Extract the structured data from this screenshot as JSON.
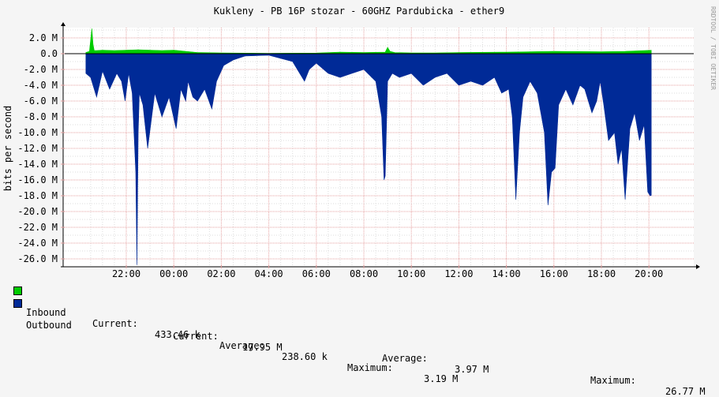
{
  "chart_data": {
    "type": "area",
    "title": "Kukleny - PB 16P stozar - 60GHZ Pardubicka - ether9",
    "ylabel": "bits per second",
    "watermark": "RRDTOOL / TOBI OETIKER",
    "x_ticks": [
      "22:00",
      "00:00",
      "02:00",
      "04:00",
      "06:00",
      "08:00",
      "10:00",
      "12:00",
      "14:00",
      "16:00",
      "18:00",
      "20:00"
    ],
    "y_ticks": [
      "2.0 M",
      "0.0",
      "-2.0 M",
      "-4.0 M",
      "-6.0 M",
      "-8.0 M",
      "-10.0 M",
      "-12.0 M",
      "-14.0 M",
      "-16.0 M",
      "-18.0 M",
      "-20.0 M",
      "-22.0 M",
      "-24.0 M",
      "-26.0 M"
    ],
    "ylim": [
      -27,
      3.2
    ],
    "x_hours_range": [
      20.3,
      44.1
    ],
    "x_tick_hours": [
      22,
      24,
      26,
      28,
      30,
      32,
      34,
      36,
      38,
      40,
      42,
      44
    ],
    "y_tick_values": [
      2,
      0,
      -2,
      -4,
      -6,
      -8,
      -10,
      -12,
      -14,
      -16,
      -18,
      -20,
      -22,
      -24,
      -26
    ],
    "grid": true,
    "legend_position": "bottom",
    "series": [
      {
        "name": "Inbound",
        "color": "#00cc00",
        "x_hours": [
          20.3,
          20.45,
          20.55,
          20.6,
          20.65,
          20.75,
          21.0,
          21.5,
          22.0,
          22.5,
          23.0,
          23.5,
          24.0,
          24.5,
          25.0,
          26.0,
          28.0,
          30.0,
          31.0,
          32.0,
          32.9,
          33.0,
          33.1,
          33.3,
          34.0,
          35.0,
          36.0,
          38.0,
          40.0,
          42.0,
          43.0,
          44.1
        ],
        "values": [
          0.15,
          0.3,
          3.19,
          1.2,
          0.4,
          0.4,
          0.45,
          0.4,
          0.45,
          0.5,
          0.45,
          0.4,
          0.45,
          0.3,
          0.15,
          0.1,
          0.05,
          0.08,
          0.2,
          0.15,
          0.2,
          0.8,
          0.3,
          0.15,
          0.1,
          0.1,
          0.15,
          0.2,
          0.3,
          0.25,
          0.3,
          0.43
        ]
      },
      {
        "name": "Outbound",
        "color": "#002a97",
        "x_hours": [
          20.3,
          20.5,
          20.75,
          21.0,
          21.3,
          21.6,
          21.8,
          21.95,
          22.1,
          22.25,
          22.4,
          22.45,
          22.5,
          22.55,
          22.7,
          22.9,
          23.2,
          23.5,
          23.8,
          24.1,
          24.3,
          24.5,
          24.6,
          24.8,
          25.0,
          25.3,
          25.6,
          25.8,
          25.95,
          26.1,
          26.5,
          27.0,
          28.0,
          29.0,
          29.5,
          29.7,
          30.0,
          30.5,
          31.0,
          31.5,
          32.0,
          32.5,
          32.75,
          32.85,
          32.9,
          33.0,
          33.2,
          33.5,
          34.0,
          34.5,
          35.0,
          35.5,
          36.0,
          36.5,
          37.0,
          37.5,
          37.8,
          38.1,
          38.25,
          38.4,
          38.55,
          38.7,
          39.0,
          39.3,
          39.6,
          39.75,
          39.9,
          40.05,
          40.2,
          40.5,
          40.8,
          41.1,
          41.3,
          41.6,
          41.8,
          41.95,
          42.1,
          42.3,
          42.55,
          42.7,
          42.85,
          43.0,
          43.2,
          43.4,
          43.6,
          43.8,
          43.95,
          44.05,
          44.1
        ],
        "values": [
          -2.5,
          -3.0,
          -5.5,
          -2.2,
          -4.5,
          -2.5,
          -3.5,
          -6.0,
          -2.5,
          -5.0,
          -15.0,
          -26.77,
          -10.0,
          -5.0,
          -6.5,
          -12.0,
          -5.0,
          -8.0,
          -5.5,
          -9.5,
          -4.5,
          -6.0,
          -3.5,
          -5.5,
          -6.0,
          -4.5,
          -7.0,
          -3.5,
          -2.5,
          -1.5,
          -0.8,
          -0.3,
          -0.2,
          -1.0,
          -3.5,
          -2.0,
          -1.2,
          -2.5,
          -3.0,
          -2.5,
          -2.0,
          -3.5,
          -8.0,
          -16.0,
          -15.5,
          -3.5,
          -2.5,
          -3.0,
          -2.5,
          -4.0,
          -3.0,
          -2.5,
          -4.0,
          -3.5,
          -4.0,
          -3.0,
          -5.0,
          -4.5,
          -8.0,
          -18.5,
          -10.0,
          -5.5,
          -3.5,
          -5.0,
          -10.0,
          -19.2,
          -15.0,
          -14.5,
          -6.5,
          -4.5,
          -6.5,
          -4.0,
          -4.5,
          -7.5,
          -6.0,
          -3.5,
          -6.5,
          -11.0,
          -10.0,
          -14.0,
          -12.0,
          -18.5,
          -9.5,
          -7.5,
          -11.0,
          -9.0,
          -17.5,
          -18.0,
          -17.95
        ]
      }
    ],
    "legend": {
      "inbound": {
        "label": "Inbound",
        "current_label": "Current:",
        "current": "433.46 k",
        "average_label": "Average:",
        "average": "238.60 k",
        "maximum_label": "Maximum:",
        "maximum": "3.19 M"
      },
      "outbound": {
        "label": "Outbound",
        "current_label": "Current:",
        "current": "17.95 M",
        "average_label": "Average:",
        "average": "3.97 M",
        "maximum_label": "Maximum:",
        "maximum": "26.77 M"
      }
    }
  }
}
